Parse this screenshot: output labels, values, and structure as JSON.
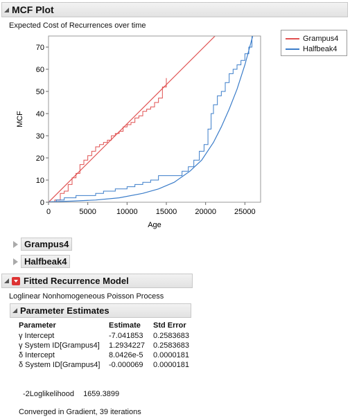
{
  "mcf_plot": {
    "title": "MCF Plot",
    "subtitle": "Expected Cost of Recurrences over time"
  },
  "chart_data": {
    "type": "line",
    "xlabel": "Age",
    "ylabel": "MCF",
    "xlim": [
      0,
      27000
    ],
    "ylim": [
      0,
      75
    ],
    "x_ticks": [
      "0",
      "5000",
      "10000",
      "15000",
      "20000",
      "25000"
    ],
    "y_ticks": [
      "0",
      "10",
      "20",
      "30",
      "40",
      "50",
      "60",
      "70"
    ],
    "legend_placement": "right",
    "series": [
      {
        "name": "Grampus4",
        "color": "#e05050",
        "kind": "step",
        "x": [
          0,
          800,
          1500,
          2000,
          2500,
          3000,
          3500,
          4000,
          4500,
          5000,
          5500,
          6000,
          6500,
          7000,
          7500,
          8000,
          8500,
          9000,
          9500,
          10000,
          10500,
          11000,
          11500,
          12000,
          12500,
          13000,
          13500,
          14000,
          14500,
          15000
        ],
        "y": [
          0,
          1,
          4,
          5,
          8,
          11,
          13,
          17,
          19,
          21,
          23,
          25,
          26,
          27,
          28,
          30,
          31,
          32,
          34,
          35,
          36,
          38,
          39,
          41,
          42,
          43,
          45,
          47,
          52,
          56
        ]
      },
      {
        "name": "Grampus4",
        "color": "#e05050",
        "kind": "fit",
        "x": [
          0,
          21200
        ],
        "y": [
          0,
          75
        ]
      },
      {
        "name": "Halfbeak4",
        "color": "#3a7cc9",
        "kind": "step",
        "x": [
          0,
          1000,
          2000,
          3500,
          5000,
          6000,
          7000,
          8500,
          10000,
          11000,
          12000,
          13000,
          14000,
          16000,
          17000,
          17800,
          18500,
          19200,
          19800,
          20300,
          20700,
          21000,
          21500,
          22000,
          22500,
          23000,
          23500,
          24000,
          24500,
          25000,
          25500,
          25900
        ],
        "y": [
          0,
          1,
          2,
          3,
          3,
          4,
          5,
          6,
          7,
          8,
          9,
          10,
          12,
          12,
          14,
          16,
          19,
          23,
          26,
          33,
          40,
          44,
          48,
          50,
          54,
          58,
          60,
          62,
          64,
          67,
          70,
          75
        ]
      },
      {
        "name": "Halfbeak4",
        "color": "#3a7cc9",
        "kind": "fit",
        "x": [
          0,
          3000,
          6000,
          9000,
          12000,
          14000,
          16000,
          18000,
          19500,
          21000,
          22000,
          23000,
          24000,
          25000,
          26000
        ],
        "y": [
          0.2,
          0.5,
          1.0,
          2.0,
          4.0,
          6.0,
          9.0,
          14.0,
          19.0,
          27.0,
          34.0,
          42.0,
          51.0,
          62.0,
          75.0
        ]
      }
    ],
    "legend": [
      "Grampus4",
      "Halfbeak4"
    ]
  },
  "sections": {
    "grampus": "Grampus4",
    "halfbeak": "Halfbeak4",
    "fitted": "Fitted Recurrence Model",
    "fitted_subtitle": "Loglinear Nonhomogeneous Poisson Process",
    "param_title": "Parameter Estimates"
  },
  "param_table": {
    "headers": [
      "Parameter",
      "Estimate",
      "Std Error"
    ],
    "rows": [
      [
        "γ Intercept",
        "-7.041853",
        "0.2583683"
      ],
      [
        "γ System ID[Grampus4]",
        "1.2934227",
        "0.2583683"
      ],
      [
        "δ Intercept",
        "8.0426e-5",
        "0.0000181"
      ],
      [
        "δ System ID[Grampus4]",
        "-0.000069",
        "0.0000181"
      ]
    ]
  },
  "loglik": {
    "label": "-2Loglikelihood",
    "value": "1659.3899"
  },
  "converged": "Converged in Gradient, 39 iterations"
}
